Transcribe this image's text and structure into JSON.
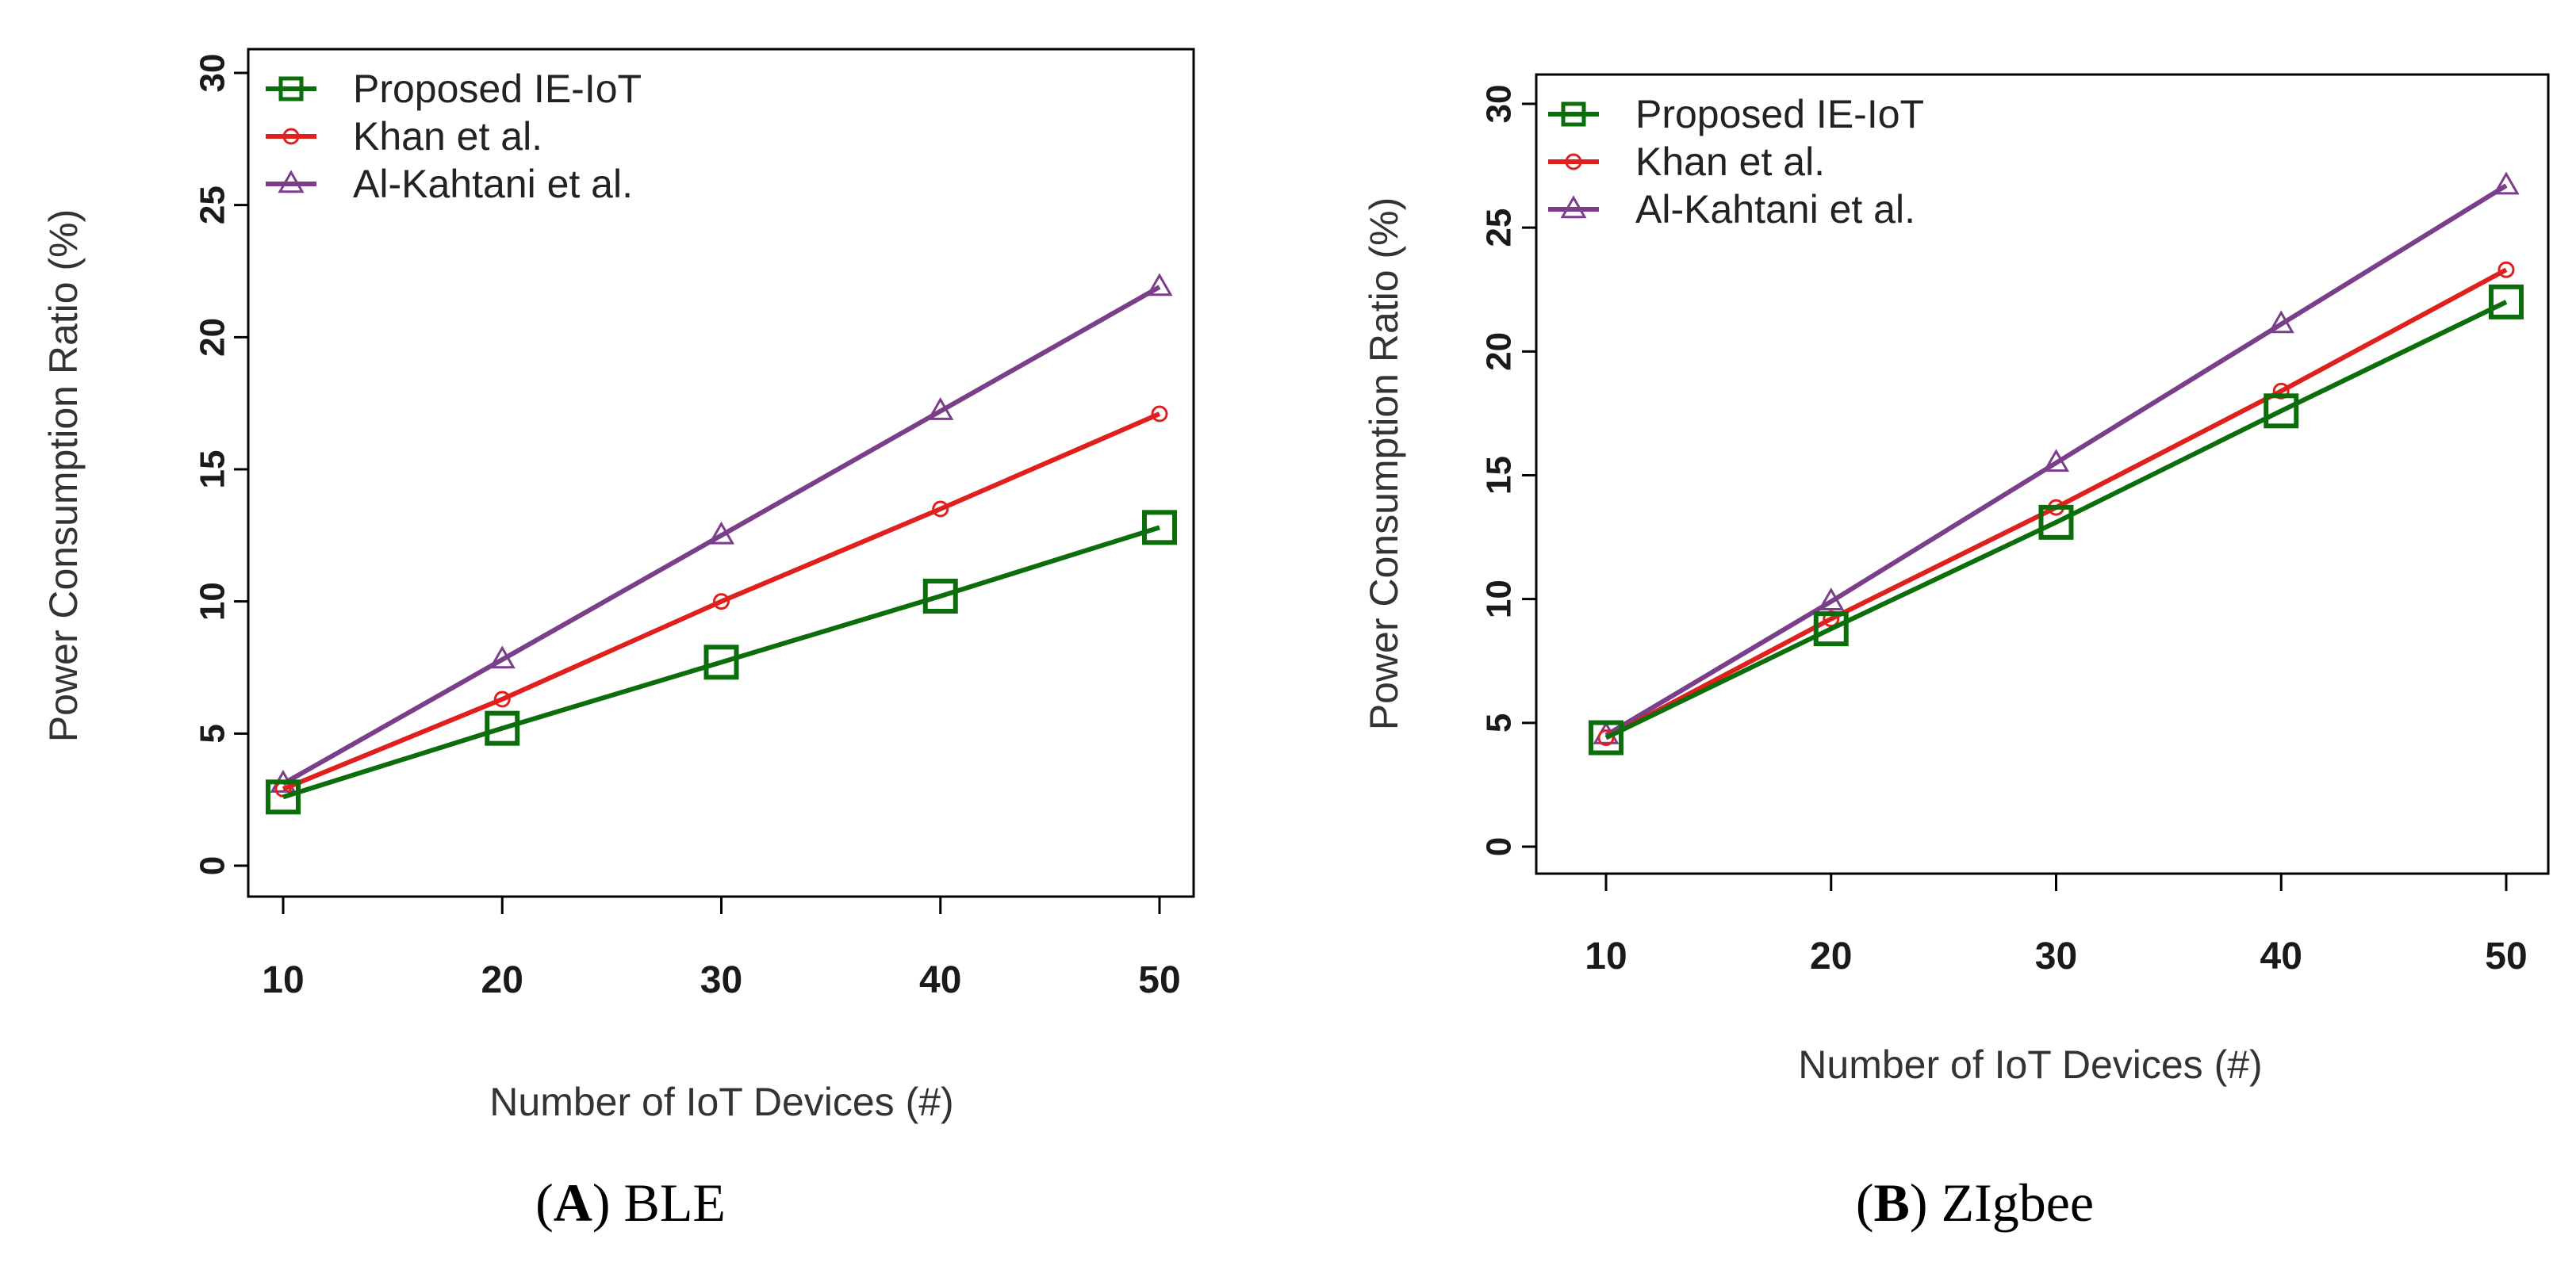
{
  "chart_data": [
    {
      "type": "line",
      "panel_label": "A",
      "caption": "BLE",
      "xlabel": "Number of IoT Devices (#)",
      "ylabel": "Power Consumption Ratio (%)",
      "x": [
        10,
        20,
        30,
        40,
        50
      ],
      "xlim": [
        10,
        50
      ],
      "ylim": [
        0,
        30
      ],
      "yticks": [
        0,
        5,
        10,
        15,
        20,
        25,
        30
      ],
      "xticks": [
        10,
        20,
        30,
        40,
        50
      ],
      "grid": false,
      "legend_position": "top-left",
      "series": [
        {
          "name": "Proposed IE-IoT",
          "color": "#0b6e0b",
          "marker": "square",
          "values": [
            2.6,
            5.2,
            7.7,
            10.2,
            12.8
          ]
        },
        {
          "name": "Khan et al.",
          "color": "#e0201d",
          "marker": "circle",
          "values": [
            2.9,
            6.3,
            10.0,
            13.5,
            17.1
          ]
        },
        {
          "name": "Al-Kahtani et al.",
          "color": "#7a3e8a",
          "marker": "triangle",
          "values": [
            3.1,
            7.8,
            12.5,
            17.2,
            21.9
          ]
        }
      ]
    },
    {
      "type": "line",
      "panel_label": "B",
      "caption": "ZIgbee",
      "xlabel": "Number of IoT Devices (#)",
      "ylabel": "Power Consumption Ratio (%)",
      "x": [
        10,
        20,
        30,
        40,
        50
      ],
      "xlim": [
        10,
        50
      ],
      "ylim": [
        0,
        30
      ],
      "yticks": [
        0,
        5,
        10,
        15,
        20,
        25,
        30
      ],
      "xticks": [
        10,
        20,
        30,
        40,
        50
      ],
      "grid": false,
      "legend_position": "top-left",
      "series": [
        {
          "name": "Proposed IE-IoT",
          "color": "#0b6e0b",
          "marker": "square",
          "values": [
            4.4,
            8.8,
            13.1,
            17.6,
            22.0
          ]
        },
        {
          "name": "Khan et al.",
          "color": "#e0201d",
          "marker": "circle",
          "values": [
            4.4,
            9.2,
            13.7,
            18.4,
            23.3
          ]
        },
        {
          "name": "Al-Kahtani et al.",
          "color": "#7a3e8a",
          "marker": "triangle",
          "values": [
            4.5,
            9.9,
            15.5,
            21.1,
            26.7
          ]
        }
      ]
    }
  ]
}
